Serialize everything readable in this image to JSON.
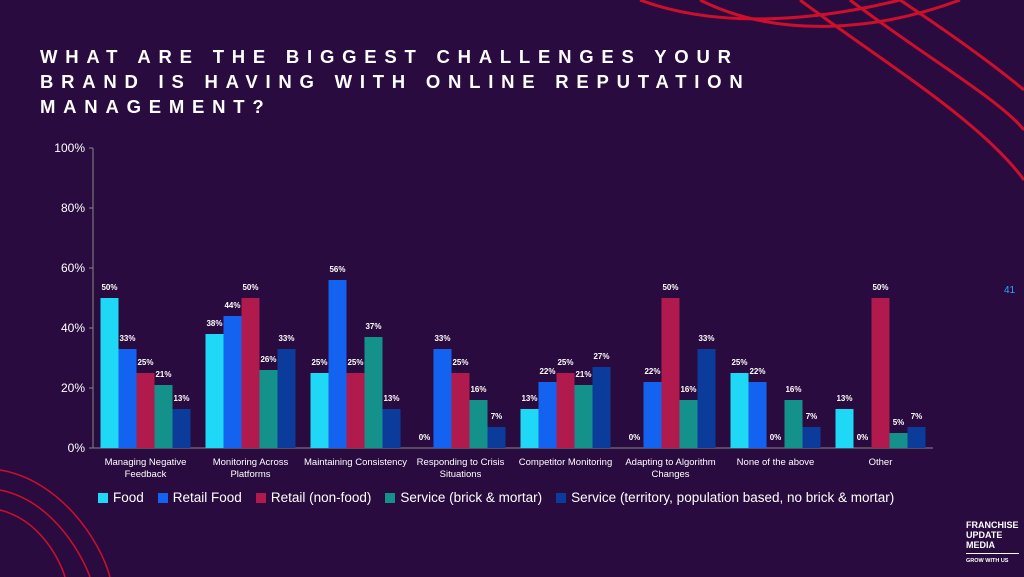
{
  "chart_data": {
    "type": "bar",
    "title": "WHAT ARE THE BIGGEST CHALLENGES YOUR BRAND IS HAVING WITH ONLINE REPUTATION MANAGEMENT?",
    "categories": [
      "Managing Negative Feedback",
      "Monitoring Across Platforms",
      "Maintaining Consistency",
      "Responding to Crisis Situations",
      "Competitor Monitoring",
      "Adapting to Algorithm Changes",
      "None of the above",
      "Other"
    ],
    "series": [
      {
        "name": "Food",
        "color": "#1ed8f6",
        "values": [
          50,
          38,
          25,
          0,
          13,
          0,
          25,
          13
        ],
        "value_labels": [
          "50%",
          "38%",
          "25%",
          "0%",
          "13%",
          "0%",
          "25%",
          "13%"
        ]
      },
      {
        "name": "Retail Food",
        "color": "#1463f0",
        "values": [
          33,
          44,
          56,
          33,
          22,
          22,
          22,
          0
        ],
        "value_labels": [
          "33%",
          "44%",
          "56%",
          "33%",
          "22%",
          "22%",
          "22%",
          "0%"
        ]
      },
      {
        "name": "Retail (non-food)",
        "color": "#b01a4c",
        "values": [
          25,
          50,
          25,
          25,
          25,
          50,
          0,
          50
        ],
        "value_labels": [
          "25%",
          "50%",
          "25%",
          "25%",
          "25%",
          "50%",
          "0%",
          "50%"
        ]
      },
      {
        "name": "Service (brick & mortar)",
        "color": "#14918b",
        "values": [
          21,
          26,
          37,
          16,
          21,
          16,
          16,
          5
        ],
        "value_labels": [
          "21%",
          "26%",
          "37%",
          "16%",
          "21%",
          "16%",
          "16%",
          "5%"
        ]
      },
      {
        "name": "Service (territory, population based, no brick & mortar)",
        "color": "#0b3c9c",
        "values": [
          13,
          33,
          13,
          7,
          27,
          33,
          7,
          7
        ],
        "value_labels": [
          "13%",
          "33%",
          "13%",
          "7%",
          "27%",
          "33%",
          "7%",
          "7%"
        ]
      }
    ],
    "ylim": [
      0,
      100
    ],
    "yticks": [
      {
        "value": 0,
        "label": "0%"
      },
      {
        "value": 20,
        "label": "20%"
      },
      {
        "value": 40,
        "label": "40%"
      },
      {
        "value": 60,
        "label": "60%"
      },
      {
        "value": 80,
        "label": "80%"
      },
      {
        "value": 100,
        "label": "100%"
      }
    ],
    "grid": false,
    "legend": "bottom"
  },
  "page_number": "41",
  "logo": {
    "lines": [
      "FRANCHISE",
      "UPDATE",
      "MEDIA"
    ],
    "tagline": "GROW WITH US"
  }
}
